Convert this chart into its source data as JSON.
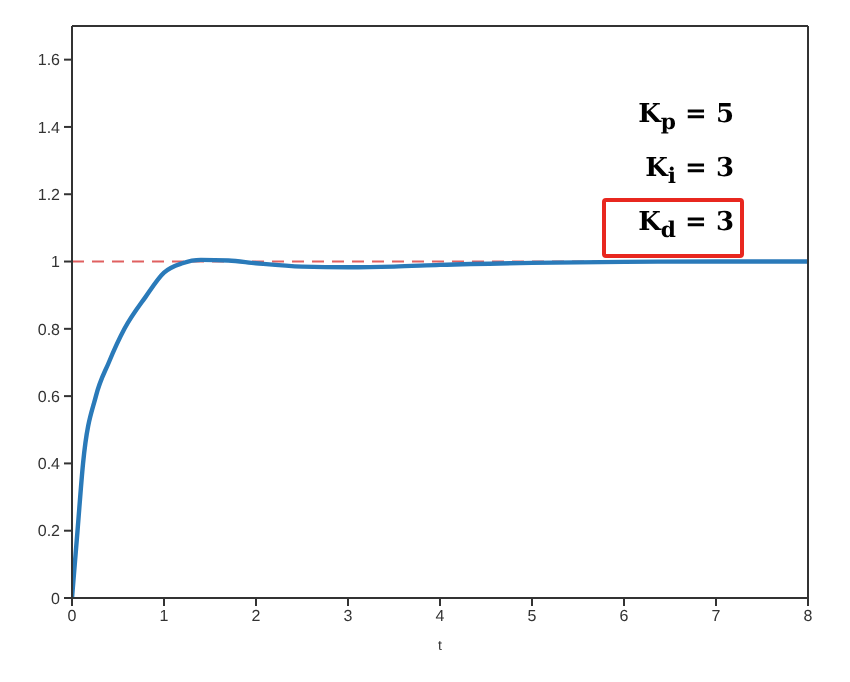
{
  "chart_data": {
    "type": "line",
    "xlabel": "t",
    "annotations": [
      "K$_{p}$ = 5",
      "K$_{i}$ = 3",
      "K$_{d}$ = 3"
    ],
    "x": [
      0,
      0.06,
      0.12,
      0.26,
      0.4,
      0.57,
      0.8,
      1,
      1.2,
      1.4,
      1.7,
      2,
      2.5,
      3,
      3.5,
      4,
      5,
      6,
      7,
      8
    ],
    "series": [
      {
        "color": "#2a7ab9",
        "values": [
          0,
          0.2,
          0.4,
          0.6,
          0.7,
          0.8,
          0.895,
          0.967,
          0.995,
          1.005,
          1.003,
          0.995,
          0.985,
          0.983,
          0.985,
          0.99,
          0.996,
          0.999,
          1,
          1
        ]
      }
    ],
    "xlim": [
      0,
      8
    ],
    "xticks": [
      0,
      1,
      2,
      3,
      4,
      5,
      6,
      7,
      8
    ],
    "ylim": [
      0,
      1.7
    ],
    "yticks": [
      0,
      0.2,
      0.4,
      0.6,
      0.8,
      1,
      1.2,
      1.4,
      1.6
    ],
    "ref_lines": [
      {
        "axis": "y",
        "value": 1,
        "color": "#e06060",
        "line_style": "dashed"
      }
    ],
    "grid": false,
    "legend": false,
    "marker": "none",
    "line_style": "solid"
  }
}
